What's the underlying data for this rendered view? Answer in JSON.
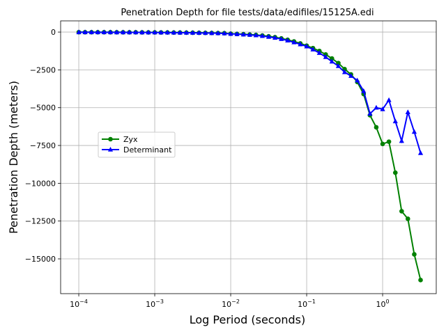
{
  "chart_data": {
    "type": "line",
    "title": "Penetration Depth for file tests/data/edifiles/15125A.edi",
    "xlabel": "Log Period (seconds)",
    "ylabel": "Penetration Depth (meters)",
    "xscale": "log",
    "grid": true,
    "legend": "center left",
    "x": [
      0.0001,
      0.000121,
      0.000147,
      0.000178,
      0.000215,
      0.000261,
      0.000316,
      0.000383,
      0.000464,
      0.000562,
      0.000681,
      0.000825,
      0.001,
      0.00121,
      0.00147,
      0.00178,
      0.00215,
      0.00261,
      0.00316,
      0.00383,
      0.00464,
      0.00562,
      0.00681,
      0.00825,
      0.01,
      0.0121,
      0.0147,
      0.0178,
      0.0215,
      0.0261,
      0.0316,
      0.0383,
      0.0464,
      0.0562,
      0.0681,
      0.0825,
      0.1,
      0.121,
      0.147,
      0.178,
      0.215,
      0.261,
      0.316,
      0.383,
      0.464,
      0.562,
      0.681,
      0.825,
      1.0,
      1.21,
      1.47,
      1.78,
      2.15,
      2.61,
      3.16
    ],
    "series": [
      {
        "name": "Zyx",
        "color": "#008000",
        "marker": "circle",
        "values": [
          -8,
          -9,
          -10,
          -11,
          -12,
          -13,
          -14,
          -15,
          -17,
          -18,
          -20,
          -22,
          -24,
          -26,
          -29,
          -32,
          -35,
          -39,
          -43,
          -48,
          -54,
          -60,
          -68,
          -76,
          -110,
          -125,
          -145,
          -165,
          -190,
          -230,
          -280,
          -340,
          -420,
          -510,
          -620,
          -750,
          -900,
          -1060,
          -1250,
          -1480,
          -1750,
          -2050,
          -2450,
          -2800,
          -3300,
          -4100,
          -5500,
          -6300,
          -7400,
          -7250,
          -9300,
          -11850,
          -12350,
          -14700,
          -16400
        ]
      },
      {
        "name": "Determinant",
        "color": "#0000ff",
        "marker": "triangle",
        "values": [
          -9,
          -10,
          -11,
          -12,
          -13,
          -14,
          -15,
          -16,
          -18,
          -19,
          -21,
          -23,
          -25,
          -28,
          -31,
          -34,
          -38,
          -42,
          -47,
          -53,
          -60,
          -67,
          -76,
          -86,
          -120,
          -135,
          -160,
          -185,
          -215,
          -260,
          -315,
          -380,
          -460,
          -560,
          -680,
          -810,
          -950,
          -1150,
          -1380,
          -1650,
          -1950,
          -2250,
          -2650,
          -2900,
          -3200,
          -3900,
          -5400,
          -5000,
          -5100,
          -4500,
          -5900,
          -7200,
          -5300,
          -6600,
          -8000
        ]
      }
    ],
    "xlim": [
      5.77e-05,
      5.08
    ],
    "ylim": [
      -17300,
      740
    ],
    "xticks": [
      {
        "value": 0.0001,
        "label": "10",
        "exponent": "−4"
      },
      {
        "value": 0.001,
        "label": "10",
        "exponent": "−3"
      },
      {
        "value": 0.01,
        "label": "10",
        "exponent": "−2"
      },
      {
        "value": 0.1,
        "label": "10",
        "exponent": "−1"
      },
      {
        "value": 1,
        "label": "10",
        "exponent": "0"
      }
    ],
    "yticks": [
      0,
      {
        "value": -2500,
        "label": "−2500"
      },
      {
        "value": -5000,
        "label": "−5000"
      },
      {
        "value": -7500,
        "label": "−7500"
      },
      {
        "value": -10000,
        "label": "−10000"
      },
      {
        "value": -12500,
        "label": "−12500"
      },
      {
        "value": -15000,
        "label": "−15000"
      }
    ]
  }
}
